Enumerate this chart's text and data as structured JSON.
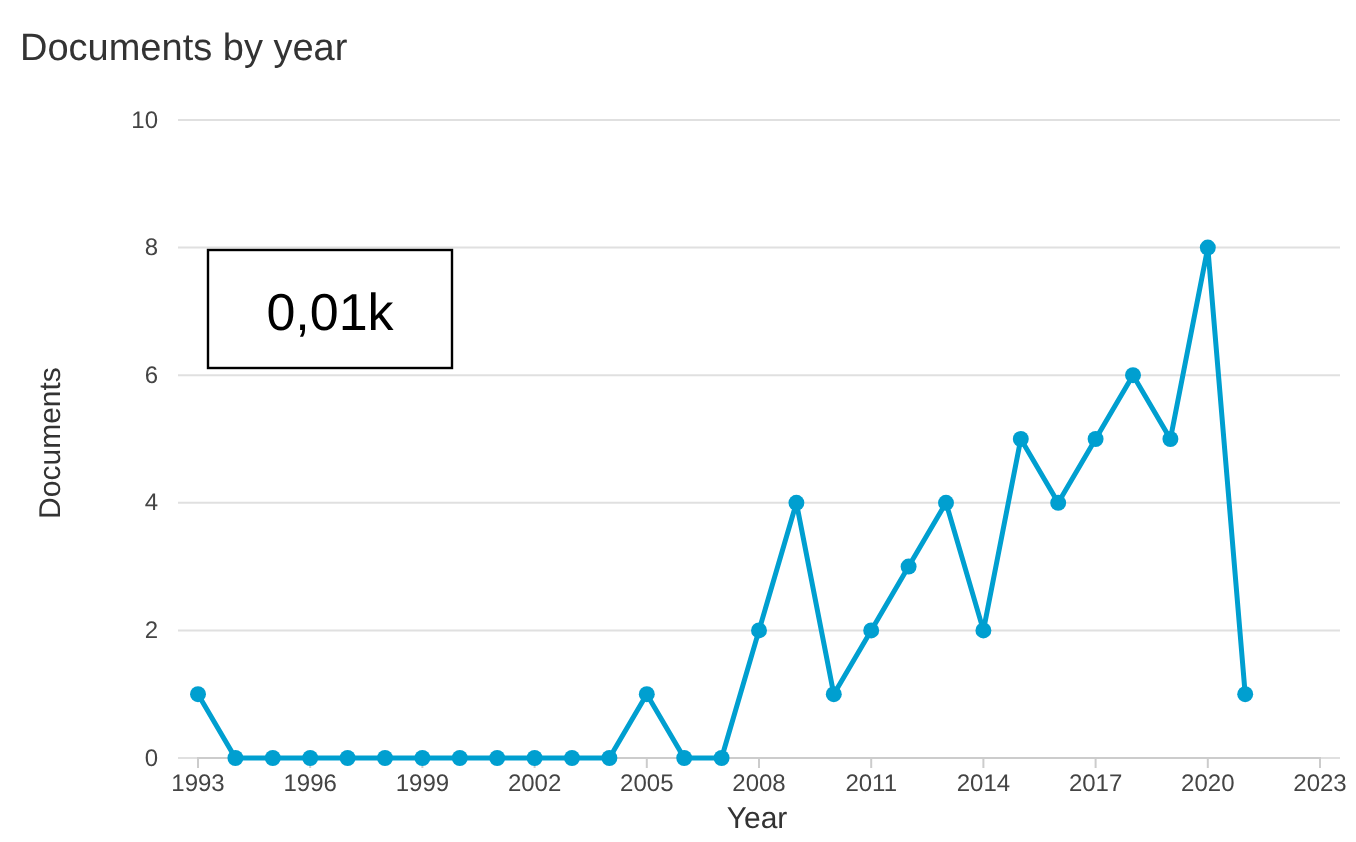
{
  "chart_data": {
    "type": "line",
    "title": "Documents by year",
    "xlabel": "Year",
    "ylabel": "Documents",
    "x": [
      1993,
      1994,
      1995,
      1996,
      1997,
      1998,
      1999,
      2000,
      2001,
      2002,
      2003,
      2004,
      2005,
      2006,
      2007,
      2008,
      2009,
      2010,
      2011,
      2012,
      2013,
      2014,
      2015,
      2016,
      2017,
      2018,
      2019,
      2020,
      2021
    ],
    "series": [
      {
        "color": "#009fd0",
        "values": [
          1,
          0,
          0,
          0,
          0,
          0,
          0,
          0,
          0,
          0,
          0,
          0,
          1,
          0,
          0,
          2,
          4,
          1,
          2,
          3,
          4,
          2,
          5,
          4,
          5,
          6,
          5,
          8,
          1
        ]
      }
    ],
    "xlim": [
      1993,
      2023
    ],
    "xticks": [
      1993,
      1996,
      1999,
      2002,
      2005,
      2008,
      2011,
      2014,
      2017,
      2020,
      2023
    ],
    "ylim": [
      0,
      10
    ],
    "yticks": [
      0,
      2,
      4,
      6,
      8,
      10
    ],
    "grid": "y",
    "marker": "circle",
    "line_style": "solid",
    "annotations": [
      "0,01k"
    ]
  }
}
